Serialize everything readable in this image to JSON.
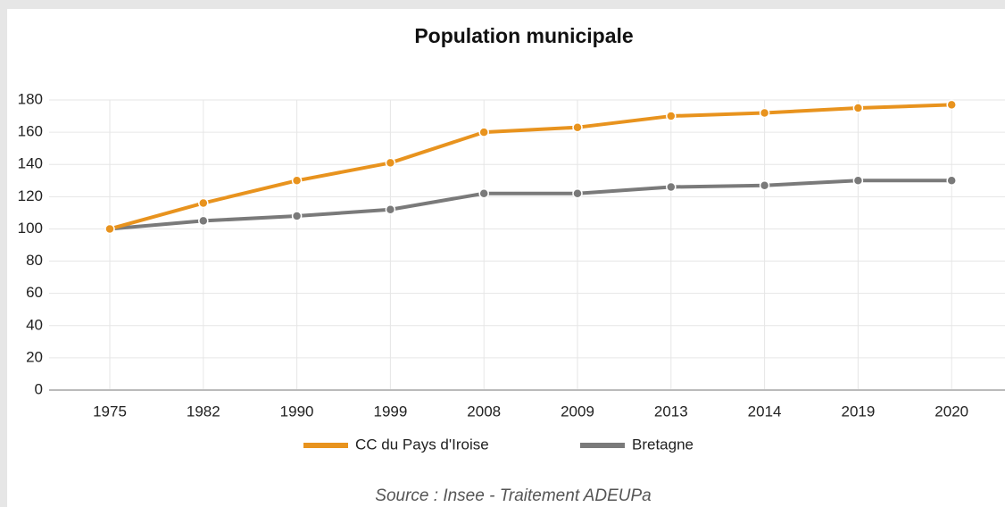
{
  "chart_data": {
    "type": "line",
    "title": "Population municipale",
    "categories": [
      "1975",
      "1982",
      "1990",
      "1999",
      "2008",
      "2009",
      "2013",
      "2014",
      "2019",
      "2020"
    ],
    "series": [
      {
        "name": "CC du Pays d'Iroise",
        "color": "#e8931e",
        "values": [
          100,
          116,
          130,
          141,
          160,
          163,
          170,
          172,
          175,
          177
        ]
      },
      {
        "name": "Bretagne",
        "color": "#7a7a7a",
        "values": [
          100,
          105,
          108,
          112,
          122,
          122,
          126,
          127,
          130,
          130
        ]
      }
    ],
    "ylim": [
      0,
      180
    ],
    "yticks": [
      0,
      20,
      40,
      60,
      80,
      100,
      120,
      140,
      160,
      180
    ],
    "grid": true,
    "legend": "bottom",
    "source": "Source : Insee - Traitement ADEUPa"
  }
}
